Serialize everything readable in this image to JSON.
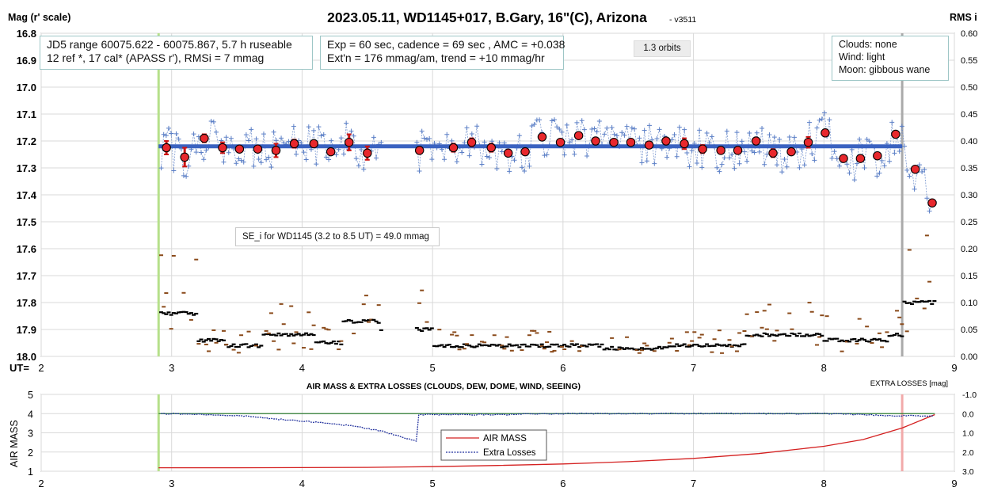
{
  "top": {
    "title": "2023.05.11, WD1145+017, B.Gary, 16\"(C), Arizona",
    "version": "- v3511",
    "left_axis_label": "Mag (r' scale)",
    "right_axis_label": "RMS i",
    "x_axis_prefix": "UT=",
    "info_box_1": [
      "JD5 range 60075.622 - 60075.867, 5.7 h ruseable",
      "12 ref *, 17 cal*  (APASS r'), RMSi = 7 mmag"
    ],
    "info_box_2": [
      "Exp = 60 sec, cadence = 69 sec , AMC = +0.038",
      "Ext'n = 176 mmag/am, trend = +10 mmag/hr"
    ],
    "orbits_label": "1.3 orbits",
    "conditions": [
      "Clouds: none",
      "Wind:    light",
      "Moon:    gibbous wane"
    ],
    "se_label": "SE_i for WD1145 (3.2 to 8.5 UT) = 49.0 mmag"
  },
  "bottom": {
    "title": "AIR MASS & EXTRA LOSSES (CLOUDS, DEW, DOME, WIND, SEEING)",
    "left_axis_label": "AIR MASS",
    "right_axis_label": "EXTRA LOSSES [mag]",
    "legend": [
      "AIR MASS",
      "Extra Losses"
    ]
  },
  "colors": {
    "model_line": "#3a62c0",
    "individual": "#5b7fc6",
    "binned_fill": "#e8282d",
    "error_bar": "#cc1414",
    "rms_binned": "#000000",
    "rms_individual": "#8a4a1a",
    "start_marker": "#b6e08a",
    "end_marker_top": "#aaaaaa",
    "end_marker_bottom": "#f2aaaa",
    "air_mass": "#d42020",
    "extra_losses": "#1a2a9a",
    "zero_loss_line": "#2e7d32"
  },
  "chart_data": [
    {
      "type": "scatter",
      "title": "2023.05.11, WD1145+017, B.Gary, 16\"(C), Arizona",
      "xlabel": "UT=",
      "ylabel": "Mag (r' scale)",
      "y2label": "RMS i",
      "xlim": [
        2,
        9
      ],
      "ylim": [
        18.0,
        16.8
      ],
      "y2lim": [
        0.0,
        0.6
      ],
      "x_ticks": [
        2,
        3,
        4,
        5,
        6,
        7,
        8,
        9
      ],
      "y_ticks": [
        16.8,
        16.9,
        17.0,
        17.1,
        17.2,
        17.3,
        17.4,
        17.5,
        17.6,
        17.7,
        17.8,
        17.9,
        18.0
      ],
      "y2_ticks": [
        0.0,
        0.05,
        0.1,
        0.15,
        0.2,
        0.25,
        0.3,
        0.35,
        0.4,
        0.45,
        0.5,
        0.55,
        0.6
      ],
      "grid": true,
      "model_line": {
        "x": [
          2.9,
          8.6
        ],
        "y": [
          17.22,
          17.22
        ]
      },
      "start_marker_x": 2.9,
      "end_marker_x": 8.6,
      "binned": {
        "x": [
          2.96,
          3.1,
          3.25,
          3.39,
          3.52,
          3.66,
          3.8,
          3.94,
          4.09,
          4.22,
          4.36,
          4.5,
          4.9,
          5.16,
          5.3,
          5.45,
          5.58,
          5.71,
          5.84,
          5.98,
          6.12,
          6.25,
          6.39,
          6.52,
          6.66,
          6.79,
          6.93,
          7.07,
          7.21,
          7.34,
          7.48,
          7.61,
          7.75,
          7.88,
          8.01,
          8.15,
          8.28,
          8.41,
          8.55,
          8.7,
          8.83
        ],
        "y": [
          17.225,
          17.26,
          17.19,
          17.225,
          17.23,
          17.23,
          17.235,
          17.21,
          17.21,
          17.24,
          17.205,
          17.245,
          17.235,
          17.225,
          17.205,
          17.225,
          17.245,
          17.24,
          17.185,
          17.205,
          17.18,
          17.2,
          17.205,
          17.205,
          17.215,
          17.2,
          17.21,
          17.23,
          17.235,
          17.235,
          17.2,
          17.245,
          17.24,
          17.205,
          17.17,
          17.265,
          17.265,
          17.255,
          17.175,
          17.305,
          17.43
        ],
        "err": [
          0.025,
          0.035,
          0.015,
          0.02,
          0.01,
          0.01,
          0.025,
          0.015,
          0.01,
          0.01,
          0.03,
          0.025,
          0.01,
          0.015,
          0.015,
          0.015,
          0.01,
          0.01,
          0.01,
          0.01,
          0.01,
          0.01,
          0.01,
          0.01,
          0.01,
          0.01,
          0.02,
          0.015,
          0.01,
          0.01,
          0.01,
          0.015,
          0.01,
          0.02,
          0.01,
          0.01,
          0.01,
          0.01,
          0.01,
          0.01,
          0.01
        ]
      },
      "individual_series": "Individual measurements, ~69 s cadence, 2.9–4.65 UT and 4.85–8.85 UT, scatter about 17.22 mag",
      "rms_series": "RMS i per bin (right axis) with individual scatter, 0.0–0.15 range"
    },
    {
      "type": "line",
      "title": "AIR MASS & EXTRA LOSSES (CLOUDS, DEW, DOME, WIND, SEEING)",
      "ylabel": "AIR MASS",
      "y2label": "EXTRA LOSSES [mag]",
      "xlim": [
        2,
        9
      ],
      "ylim": [
        1,
        5
      ],
      "y2lim": [
        3.0,
        -1.0
      ],
      "x_ticks": [
        2,
        3,
        4,
        5,
        6,
        7,
        8,
        9
      ],
      "y_ticks": [
        1,
        2,
        3,
        4,
        5
      ],
      "y2_ticks": [
        -1.0,
        0.0,
        1.0,
        2.0,
        3.0
      ],
      "series": [
        {
          "name": "AIR MASS",
          "x": [
            2.9,
            3.5,
            4.0,
            4.5,
            5.0,
            5.5,
            6.0,
            6.5,
            7.0,
            7.5,
            8.0,
            8.3,
            8.6,
            8.85
          ],
          "values": [
            1.18,
            1.18,
            1.19,
            1.2,
            1.24,
            1.3,
            1.38,
            1.5,
            1.67,
            1.92,
            2.3,
            2.65,
            3.25,
            3.95
          ]
        },
        {
          "name": "Extra Losses",
          "x": [
            2.9,
            3.2,
            3.4,
            3.6,
            3.8,
            4.0,
            4.2,
            4.4,
            4.6,
            4.75,
            4.88,
            4.9,
            5.0,
            5.5,
            6.0,
            6.5,
            7.0,
            7.5,
            8.0,
            8.5,
            8.85
          ],
          "values": [
            0.0,
            0.03,
            0.08,
            0.15,
            0.28,
            0.38,
            0.5,
            0.65,
            0.9,
            1.2,
            1.45,
            0.05,
            0.05,
            0.05,
            0.0,
            0.0,
            0.0,
            0.0,
            0.0,
            0.1,
            0.12
          ]
        }
      ],
      "zero_loss_line": 0.0,
      "start_marker_x": 2.9,
      "end_marker_x": 8.6
    }
  ]
}
